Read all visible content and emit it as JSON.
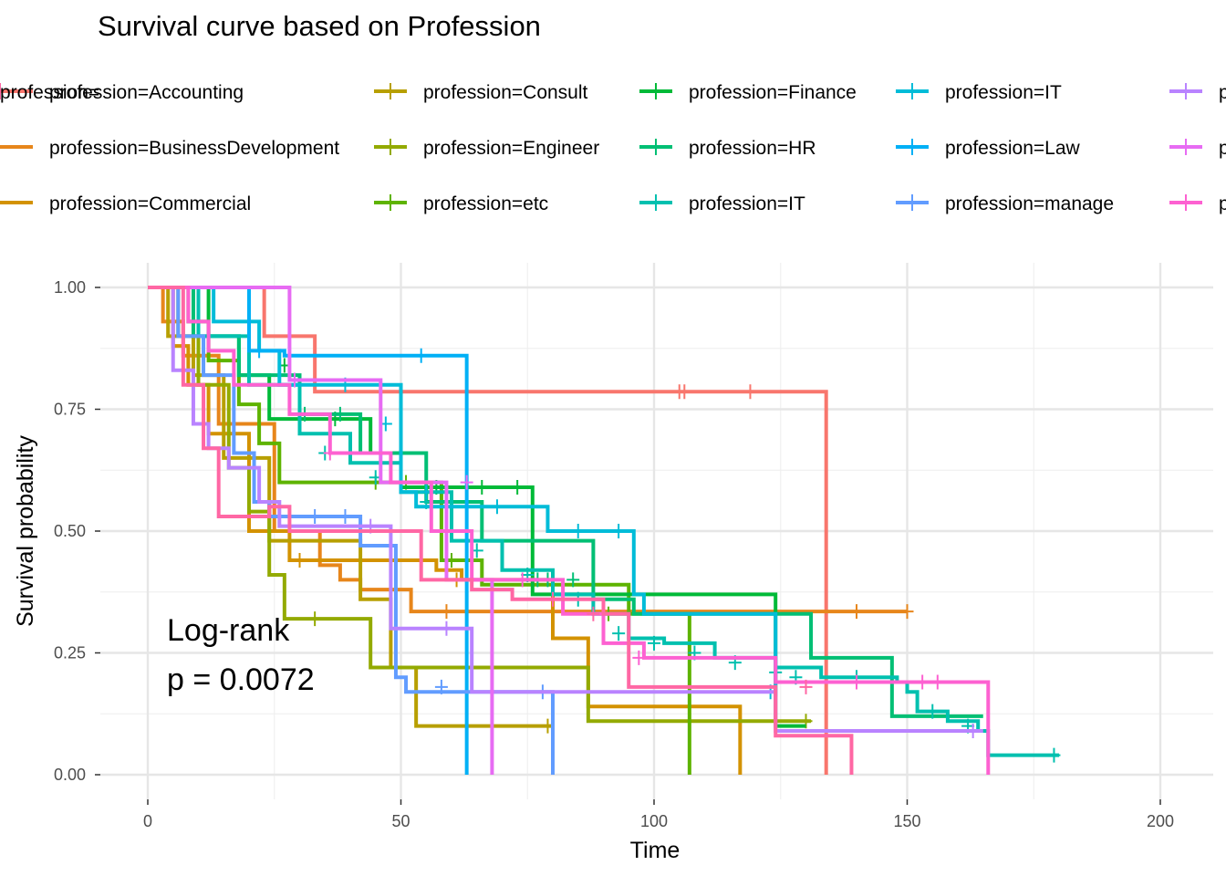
{
  "chart_data": {
    "type": "line",
    "subtype": "kaplan-meier step",
    "title": "Survival curve based on Profession",
    "xlabel": "Time",
    "ylabel": "Survival probability",
    "xlim": [
      0,
      210
    ],
    "ylim": [
      0,
      1
    ],
    "x_ticks": [
      "0",
      "50",
      "100",
      "150",
      "200"
    ],
    "y_ticks": [
      "0.00",
      "0.25",
      "0.50",
      "0.75",
      "1.00"
    ],
    "grid": true,
    "legend_position": "top",
    "annotation": [
      "Log-rank",
      "p = 0.0072"
    ],
    "series": [
      {
        "name": "profession=Accounting",
        "color": "#F8766D",
        "x": [
          0,
          23,
          33,
          134,
          134
        ],
        "y": [
          1.0,
          0.9,
          0.786,
          0.786,
          0.0
        ],
        "censor_x": [
          105,
          106,
          119
        ],
        "censor_y": [
          0.786,
          0.786,
          0.786
        ]
      },
      {
        "name": "profession=BusinessDevelopment",
        "color": "#E7861B",
        "x": [
          0,
          3,
          7,
          14,
          25,
          34,
          38,
          42,
          52,
          150
        ],
        "y": [
          1.0,
          0.93,
          0.86,
          0.72,
          0.5,
          0.43,
          0.4,
          0.38,
          0.335,
          0.335
        ],
        "censor_x": [
          59,
          140,
          150
        ],
        "censor_y": [
          0.335,
          0.335,
          0.335
        ]
      },
      {
        "name": "profession=Commercial",
        "color": "#D39200",
        "x": [
          0,
          5,
          8,
          12,
          20,
          28,
          50,
          57,
          62,
          80,
          87,
          117,
          117
        ],
        "y": [
          1.0,
          0.88,
          0.8,
          0.7,
          0.5,
          0.44,
          0.44,
          0.42,
          0.4,
          0.28,
          0.14,
          0.14,
          0.0
        ],
        "censor_x": [
          30,
          61
        ],
        "censor_y": [
          0.44,
          0.4
        ]
      },
      {
        "name": "profession=Consult",
        "color": "#B79F00",
        "x": [
          0,
          4,
          9,
          15,
          24,
          42,
          48,
          53,
          80
        ],
        "y": [
          1.0,
          0.9,
          0.82,
          0.65,
          0.48,
          0.36,
          0.22,
          0.1,
          0.1
        ],
        "censor_x": [
          79
        ],
        "censor_y": [
          0.1
        ]
      },
      {
        "name": "profession=Engineer",
        "color": "#93AA00",
        "x": [
          0,
          6,
          10,
          16,
          20,
          24,
          27,
          44,
          48,
          87,
          131
        ],
        "y": [
          1.0,
          0.9,
          0.8,
          0.63,
          0.54,
          0.41,
          0.32,
          0.22,
          0.22,
          0.11,
          0.11
        ],
        "censor_x": [
          33,
          130
        ],
        "censor_y": [
          0.32,
          0.11
        ]
      },
      {
        "name": "profession=etc",
        "color": "#5EB300",
        "x": [
          0,
          8,
          12,
          18,
          22,
          26,
          52,
          58,
          66,
          95,
          107,
          107
        ],
        "y": [
          1.0,
          0.93,
          0.85,
          0.76,
          0.68,
          0.6,
          0.6,
          0.44,
          0.39,
          0.33,
          0.33,
          0.0
        ],
        "censor_x": [
          45,
          51,
          60,
          91
        ],
        "censor_y": [
          0.6,
          0.6,
          0.44,
          0.33
        ]
      },
      {
        "name": "profession=Finance",
        "color": "#00BA38",
        "x": [
          0,
          12,
          18,
          24,
          35,
          44,
          50,
          74,
          76,
          114,
          124,
          130
        ],
        "y": [
          1.0,
          0.9,
          0.82,
          0.73,
          0.73,
          0.66,
          0.59,
          0.59,
          0.37,
          0.37,
          0.1,
          0.1
        ],
        "censor_x": [
          27,
          37,
          57,
          66,
          73
        ],
        "censor_y": [
          0.84,
          0.73,
          0.59,
          0.59,
          0.59
        ]
      },
      {
        "name": "profession=HR",
        "color": "#00BF74",
        "x": [
          0,
          9,
          18,
          30,
          42,
          55,
          66,
          73,
          88,
          96,
          114,
          131,
          145,
          147,
          163,
          165
        ],
        "y": [
          1.0,
          0.9,
          0.82,
          0.74,
          0.66,
          0.56,
          0.48,
          0.48,
          0.36,
          0.33,
          0.33,
          0.24,
          0.24,
          0.12,
          0.12,
          0.12
        ],
        "censor_x": [
          31,
          38,
          77,
          79,
          84
        ],
        "censor_y": [
          0.74,
          0.74,
          0.4,
          0.4,
          0.4
        ]
      },
      {
        "name": "profession=IT",
        "color": "#00C0AF",
        "x": [
          0,
          10,
          20,
          30,
          40,
          50,
          60,
          70,
          80,
          88,
          95,
          102,
          112,
          124,
          133,
          140,
          148,
          150,
          152,
          158,
          164,
          166,
          180
        ],
        "y": [
          1.0,
          0.9,
          0.8,
          0.7,
          0.64,
          0.58,
          0.48,
          0.42,
          0.37,
          0.33,
          0.28,
          0.27,
          0.24,
          0.22,
          0.2,
          0.2,
          0.19,
          0.17,
          0.13,
          0.11,
          0.09,
          0.04,
          0.04
        ],
        "censor_x": [
          35,
          45,
          55,
          65,
          75,
          85,
          93,
          100,
          108,
          116,
          124,
          128,
          140,
          155,
          162,
          179
        ],
        "censor_y": [
          0.66,
          0.61,
          0.56,
          0.46,
          0.41,
          0.36,
          0.29,
          0.27,
          0.25,
          0.23,
          0.21,
          0.2,
          0.2,
          0.13,
          0.1,
          0.04
        ]
      },
      {
        "name": "profession=IT",
        "color": "#00BCD8",
        "x": [
          0,
          13,
          22,
          26,
          40,
          50,
          53,
          72,
          73,
          79,
          95,
          96,
          98,
          124,
          124
        ],
        "y": [
          1.0,
          0.93,
          0.87,
          0.8,
          0.8,
          0.58,
          0.55,
          0.55,
          0.55,
          0.5,
          0.5,
          0.37,
          0.33,
          0.33,
          0.16
        ],
        "censor_x": [
          39,
          47,
          55,
          63,
          69,
          85,
          93,
          123
        ],
        "censor_y": [
          0.8,
          0.72,
          0.58,
          0.55,
          0.55,
          0.5,
          0.5,
          0.17
        ]
      },
      {
        "name": "profession=Law",
        "color": "#00B0F6",
        "x": [
          0,
          17,
          20,
          23,
          27,
          35,
          62,
          63,
          63
        ],
        "y": [
          1.0,
          1.0,
          0.87,
          0.87,
          0.86,
          0.86,
          0.86,
          0.54,
          0.0
        ],
        "censor_x": [
          22,
          54
        ],
        "censor_y": [
          0.87,
          0.86
        ]
      },
      {
        "name": "profession=manage",
        "color": "#619CFF",
        "x": [
          0,
          6,
          11,
          17,
          21,
          24,
          34,
          42,
          49,
          51,
          60,
          76,
          80,
          80
        ],
        "y": [
          1.0,
          0.9,
          0.82,
          0.66,
          0.56,
          0.53,
          0.53,
          0.47,
          0.2,
          0.17,
          0.17,
          0.17,
          0.17,
          0.0
        ],
        "censor_x": [
          33,
          39,
          58,
          78
        ],
        "censor_y": [
          0.53,
          0.53,
          0.18,
          0.17
        ]
      },
      {
        "name": "profession=Marketing",
        "color": "#B983FF",
        "x": [
          0,
          5,
          9,
          12,
          16,
          22,
          26,
          40,
          48,
          58,
          64,
          124,
          165
        ],
        "y": [
          1.0,
          0.83,
          0.72,
          0.67,
          0.63,
          0.56,
          0.51,
          0.51,
          0.3,
          0.3,
          0.17,
          0.09,
          0.09
        ],
        "censor_x": [
          44,
          59,
          163
        ],
        "censor_y": [
          0.51,
          0.3,
          0.09
        ]
      },
      {
        "name": "profession=",
        "color": "#E76BF3",
        "x": [
          0,
          27,
          28,
          34,
          46,
          59,
          68,
          68
        ],
        "y": [
          1.0,
          1.0,
          0.81,
          0.81,
          0.6,
          0.4,
          0.4,
          0.0
        ],
        "censor_x": [
          29,
          63
        ],
        "censor_y": [
          0.81,
          0.6
        ]
      },
      {
        "name": "profession=",
        "color": "#FD61D1",
        "x": [
          0,
          8,
          12,
          17,
          28,
          36,
          48,
          56,
          64,
          82,
          90,
          98,
          124,
          166,
          166
        ],
        "y": [
          1.0,
          0.93,
          0.87,
          0.8,
          0.74,
          0.66,
          0.6,
          0.5,
          0.4,
          0.33,
          0.27,
          0.24,
          0.19,
          0.19,
          0.0
        ],
        "censor_x": [
          36,
          74,
          97,
          140,
          153,
          156
        ],
        "censor_y": [
          0.66,
          0.4,
          0.24,
          0.19,
          0.19,
          0.19
        ]
      },
      {
        "name": "profession=",
        "color": "#FF67A4",
        "x": [
          0,
          7,
          11,
          14,
          20,
          24,
          28,
          40,
          54,
          64,
          72,
          90,
          95,
          124,
          139,
          139
        ],
        "y": [
          1.0,
          0.8,
          0.67,
          0.53,
          0.53,
          0.55,
          0.5,
          0.5,
          0.4,
          0.38,
          0.36,
          0.33,
          0.18,
          0.08,
          0.08,
          0.0
        ],
        "censor_x": [
          80,
          88,
          130
        ],
        "censor_y": [
          0.36,
          0.33,
          0.18
        ]
      }
    ]
  }
}
